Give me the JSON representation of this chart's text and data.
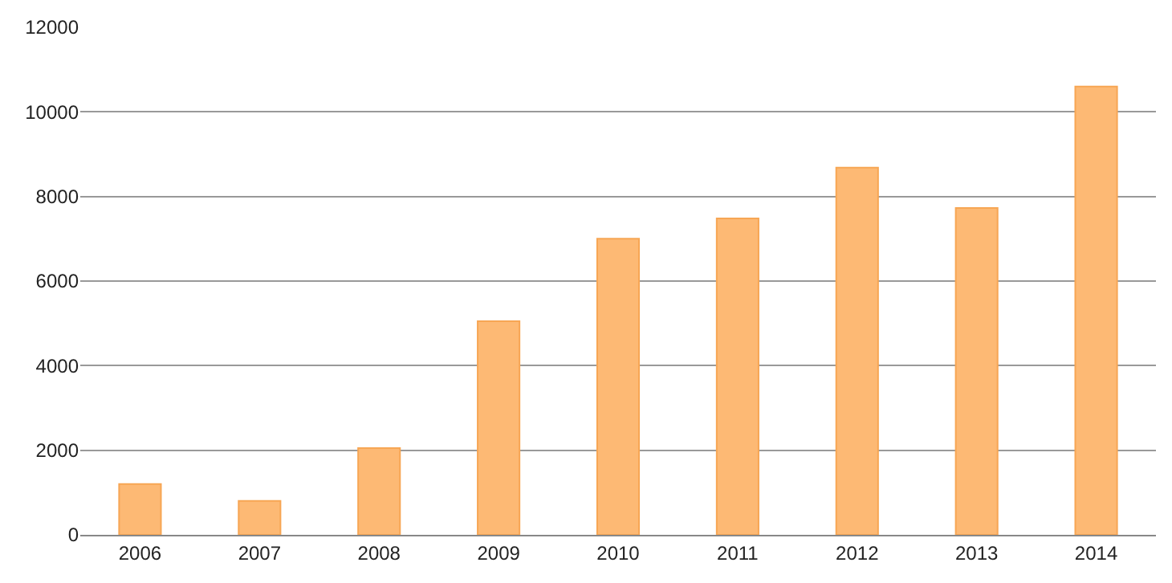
{
  "chart_data": {
    "type": "bar",
    "categories": [
      "2006",
      "2007",
      "2008",
      "2009",
      "2010",
      "2011",
      "2012",
      "2013",
      "2014"
    ],
    "values": [
      1200,
      800,
      2050,
      5050,
      7000,
      7480,
      8680,
      7730,
      10600
    ],
    "color": "#fdb974",
    "ylim": [
      0,
      12000
    ],
    "yticks": [
      0,
      2000,
      4000,
      6000,
      8000,
      10000,
      12000
    ],
    "grid": "y"
  }
}
